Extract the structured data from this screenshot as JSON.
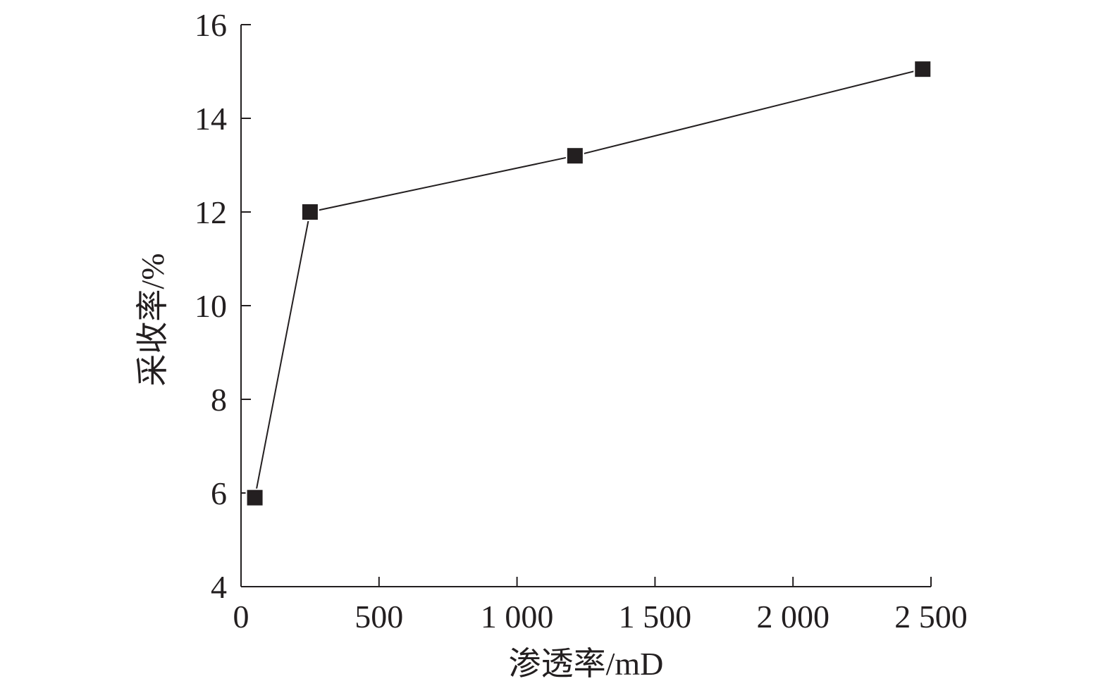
{
  "chart_data": {
    "type": "line",
    "title": "",
    "xlabel": "渗透率/mD",
    "ylabel": "采收率/%",
    "xlim": [
      0,
      2500
    ],
    "ylim": [
      4,
      16
    ],
    "xticks": [
      0,
      500,
      1000,
      1500,
      2000,
      2500
    ],
    "xtick_labels": [
      "0",
      "500",
      "1 000",
      "1 500",
      "2 000",
      "2 500"
    ],
    "yticks": [
      4,
      6,
      8,
      10,
      12,
      14,
      16
    ],
    "ytick_labels": [
      "4",
      "6",
      "8",
      "10",
      "12",
      "14",
      "16"
    ],
    "grid": false,
    "marker": "square",
    "colors": {
      "ink": "#231f20",
      "background": "#ffffff"
    },
    "series": [
      {
        "x": [
          50,
          250,
          1210,
          2470
        ],
        "y": [
          5.9,
          12.0,
          13.2,
          15.05
        ]
      }
    ]
  }
}
